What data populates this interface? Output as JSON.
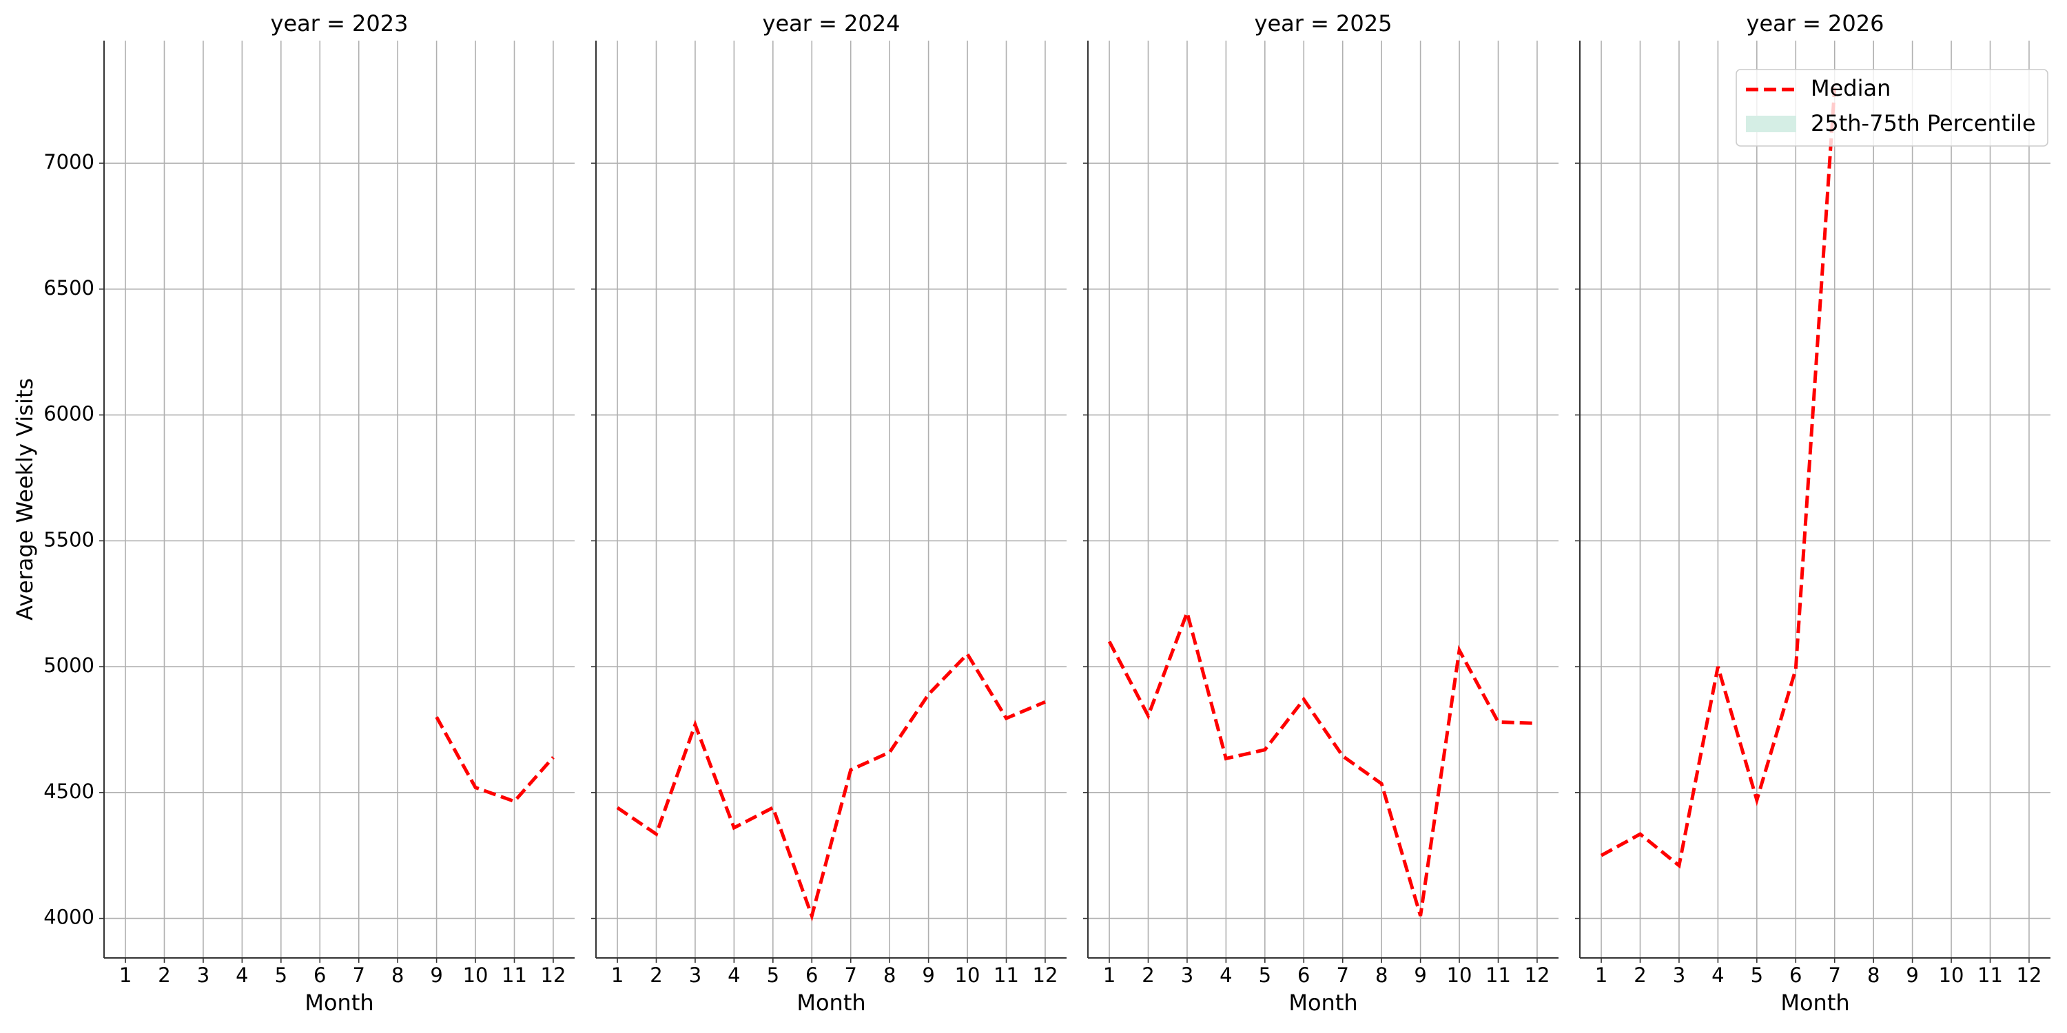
{
  "chart_data": [
    {
      "type": "line",
      "title": "year = 2023",
      "xlabel": "Month",
      "ylabel": "Average Weekly Visits",
      "x": [
        1,
        2,
        3,
        4,
        5,
        6,
        7,
        8,
        9,
        10,
        11,
        12
      ],
      "series": [
        {
          "name": "Median",
          "color": "#ff0000",
          "values": [
            null,
            null,
            null,
            null,
            null,
            null,
            null,
            null,
            4800,
            4520,
            4465,
            4640
          ]
        }
      ],
      "xlim": [
        0.45,
        12.55
      ],
      "ylim": [
        3843,
        7487
      ],
      "xticks": [
        1,
        2,
        3,
        4,
        5,
        6,
        7,
        8,
        9,
        10,
        11,
        12
      ],
      "yticks": [
        4000,
        4500,
        5000,
        5500,
        6000,
        6500,
        7000
      ],
      "grid": true
    },
    {
      "type": "line",
      "title": "year = 2024",
      "xlabel": "Month",
      "x": [
        1,
        2,
        3,
        4,
        5,
        6,
        7,
        8,
        9,
        10,
        11,
        12
      ],
      "series": [
        {
          "name": "Median",
          "color": "#ff0000",
          "values": [
            4440,
            4335,
            4770,
            4360,
            4440,
            4010,
            4590,
            4660,
            4890,
            5050,
            4795,
            4860
          ]
        }
      ],
      "xlim": [
        0.45,
        12.55
      ],
      "ylim": [
        3843,
        7487
      ],
      "xticks": [
        1,
        2,
        3,
        4,
        5,
        6,
        7,
        8,
        9,
        10,
        11,
        12
      ],
      "yticks": [
        4000,
        4500,
        5000,
        5500,
        6000,
        6500,
        7000
      ],
      "grid": true
    },
    {
      "type": "line",
      "title": "year = 2025",
      "xlabel": "Month",
      "x": [
        1,
        2,
        3,
        4,
        5,
        6,
        7,
        8,
        9,
        10,
        11,
        12
      ],
      "series": [
        {
          "name": "Median",
          "color": "#ff0000",
          "values": [
            5100,
            4805,
            5215,
            4635,
            4670,
            4870,
            4645,
            4535,
            4010,
            5065,
            4780,
            4775
          ]
        }
      ],
      "xlim": [
        0.45,
        12.55
      ],
      "ylim": [
        3843,
        7487
      ],
      "xticks": [
        1,
        2,
        3,
        4,
        5,
        6,
        7,
        8,
        9,
        10,
        11,
        12
      ],
      "yticks": [
        4000,
        4500,
        5000,
        5500,
        6000,
        6500,
        7000
      ],
      "grid": true
    },
    {
      "type": "line",
      "title": "year = 2026",
      "xlabel": "Month",
      "x": [
        1,
        2,
        3,
        4,
        5,
        6,
        7,
        8,
        9,
        10,
        11,
        12
      ],
      "series": [
        {
          "name": "Median",
          "color": "#ff0000",
          "values": [
            4250,
            4335,
            4210,
            5000,
            4470,
            4990,
            7300,
            null,
            null,
            null,
            null,
            null
          ]
        }
      ],
      "band_legend": {
        "name": "25th-75th Percentile",
        "color": "#d5eee5"
      },
      "legend": "upper right",
      "xlim": [
        0.45,
        12.55
      ],
      "ylim": [
        3843,
        7487
      ],
      "xticks": [
        1,
        2,
        3,
        4,
        5,
        6,
        7,
        8,
        9,
        10,
        11,
        12
      ],
      "yticks": [
        4000,
        4500,
        5000,
        5500,
        6000,
        6500,
        7000
      ],
      "grid": true
    }
  ]
}
